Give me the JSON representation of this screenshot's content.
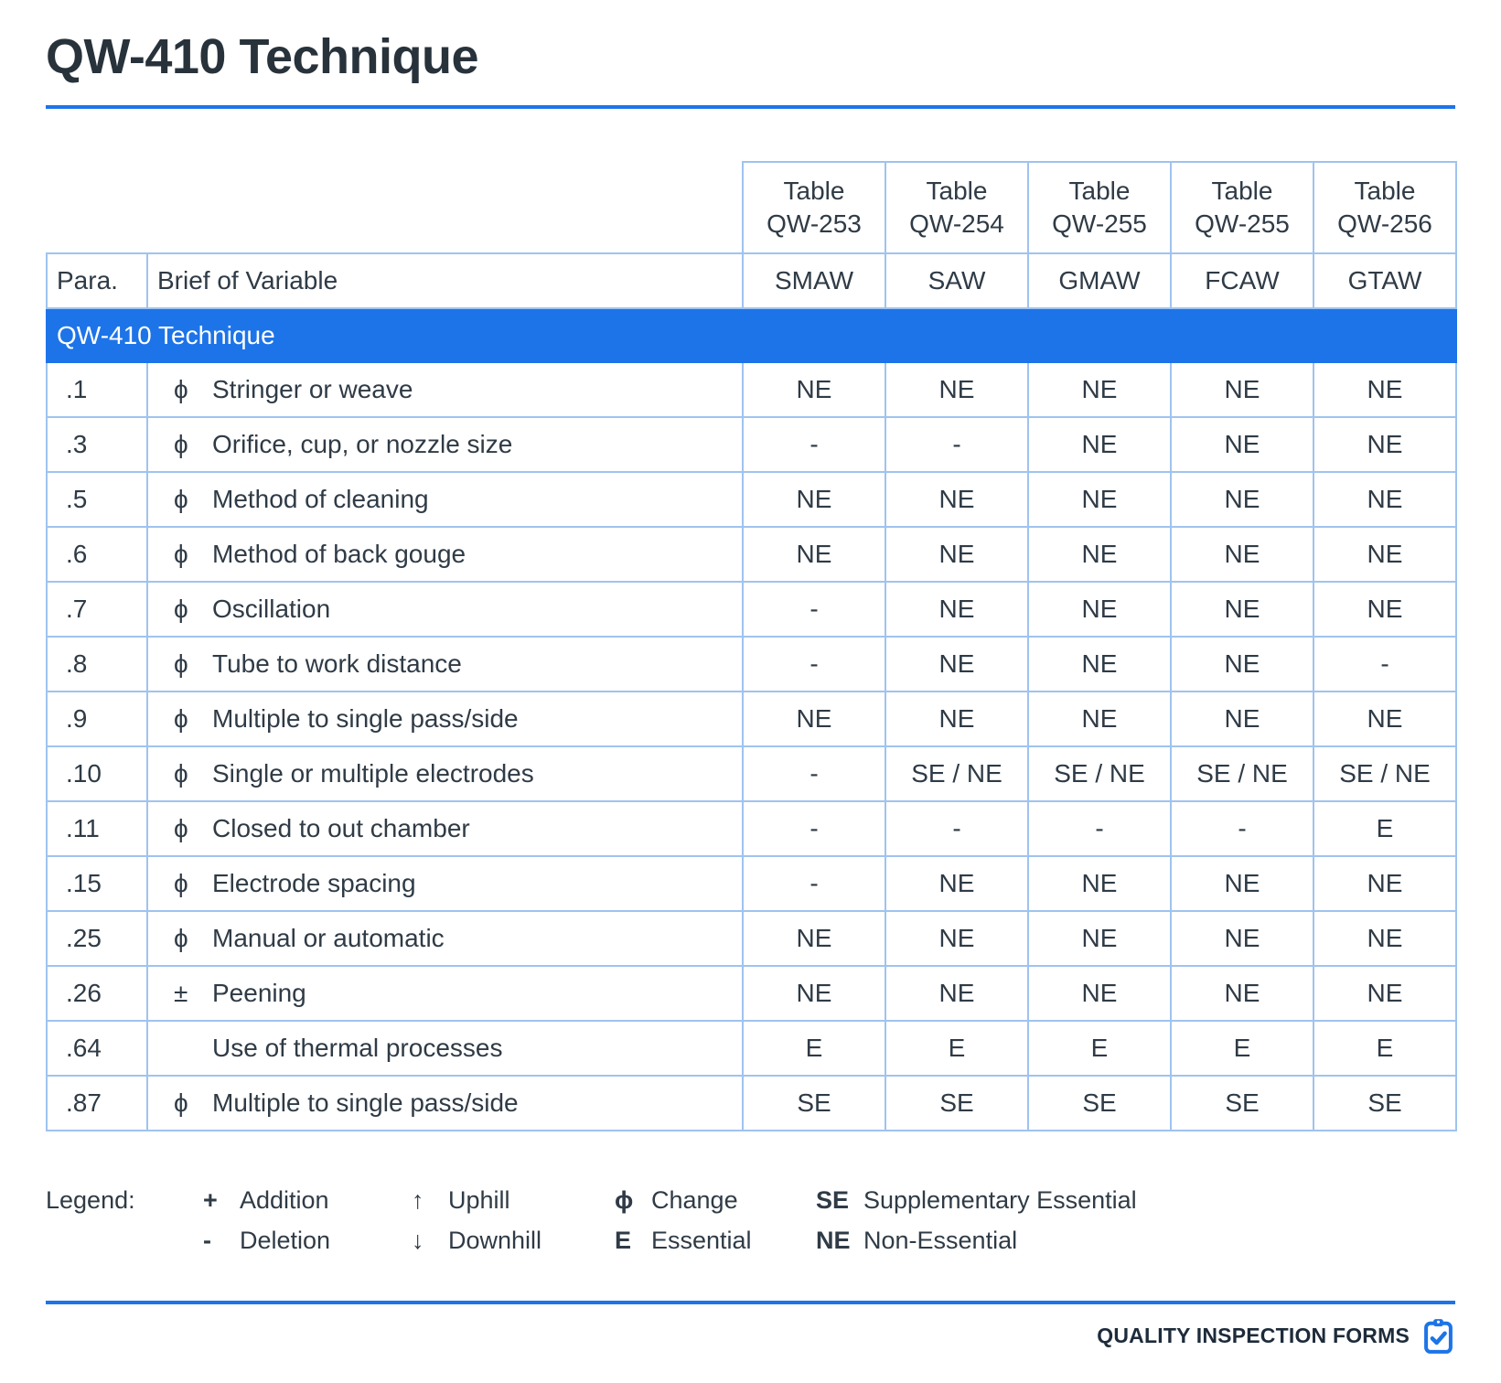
{
  "title": "QW-410 Technique",
  "table": {
    "para_header": "Para.",
    "brief_header": "Brief of Variable",
    "section_title": "QW-410 Technique",
    "columns": [
      {
        "table_label": "Table",
        "table_number": "QW-253",
        "process": "SMAW"
      },
      {
        "table_label": "Table",
        "table_number": "QW-254",
        "process": "SAW"
      },
      {
        "table_label": "Table",
        "table_number": "QW-255",
        "process": "GMAW"
      },
      {
        "table_label": "Table",
        "table_number": "QW-255",
        "process": "FCAW"
      },
      {
        "table_label": "Table",
        "table_number": "QW-256",
        "process": "GTAW"
      }
    ],
    "rows": [
      {
        "para": ".1",
        "symbol": "ϕ",
        "brief": "Stringer or weave",
        "values": [
          "NE",
          "NE",
          "NE",
          "NE",
          "NE"
        ]
      },
      {
        "para": ".3",
        "symbol": "ϕ",
        "brief": "Orifice, cup, or nozzle size",
        "values": [
          "-",
          "-",
          "NE",
          "NE",
          "NE"
        ]
      },
      {
        "para": ".5",
        "symbol": "ϕ",
        "brief": "Method of cleaning",
        "values": [
          "NE",
          "NE",
          "NE",
          "NE",
          "NE"
        ]
      },
      {
        "para": ".6",
        "symbol": "ϕ",
        "brief": "Method of back gouge",
        "values": [
          "NE",
          "NE",
          "NE",
          "NE",
          "NE"
        ]
      },
      {
        "para": ".7",
        "symbol": "ϕ",
        "brief": "Oscillation",
        "values": [
          "-",
          "NE",
          "NE",
          "NE",
          "NE"
        ]
      },
      {
        "para": ".8",
        "symbol": "ϕ",
        "brief": "Tube to work distance",
        "values": [
          "-",
          "NE",
          "NE",
          "NE",
          "-"
        ]
      },
      {
        "para": ".9",
        "symbol": "ϕ",
        "brief": "Multiple to single pass/side",
        "values": [
          "NE",
          "NE",
          "NE",
          "NE",
          "NE"
        ]
      },
      {
        "para": ".10",
        "symbol": "ϕ",
        "brief": "Single or multiple electrodes",
        "values": [
          "-",
          "SE / NE",
          "SE / NE",
          "SE / NE",
          "SE / NE"
        ]
      },
      {
        "para": ".11",
        "symbol": "ϕ",
        "brief": "Closed to out chamber",
        "values": [
          "-",
          "-",
          "-",
          "-",
          "E"
        ]
      },
      {
        "para": ".15",
        "symbol": "ϕ",
        "brief": "Electrode spacing",
        "values": [
          "-",
          "NE",
          "NE",
          "NE",
          "NE"
        ]
      },
      {
        "para": ".25",
        "symbol": "ϕ",
        "brief": "Manual or automatic",
        "values": [
          "NE",
          "NE",
          "NE",
          "NE",
          "NE"
        ]
      },
      {
        "para": ".26",
        "symbol": "±",
        "brief": "Peening",
        "values": [
          "NE",
          "NE",
          "NE",
          "NE",
          "NE"
        ]
      },
      {
        "para": ".64",
        "symbol": "",
        "brief": "Use of thermal processes",
        "values": [
          "E",
          "E",
          "E",
          "E",
          "E"
        ]
      },
      {
        "para": ".87",
        "symbol": "ϕ",
        "brief": "Multiple to single pass/side",
        "values": [
          "SE",
          "SE",
          "SE",
          "SE",
          "SE"
        ]
      }
    ]
  },
  "legend": {
    "label": "Legend:",
    "entries": [
      {
        "symbol": "+",
        "text": "Addition"
      },
      {
        "symbol": "-",
        "text": "Deletion"
      },
      {
        "symbol": "↑",
        "text": "Uphill"
      },
      {
        "symbol": "↓",
        "text": "Downhill"
      },
      {
        "symbol": "ϕ",
        "text": "Change"
      },
      {
        "symbol": "E",
        "text": "Essential"
      },
      {
        "symbol": "SE",
        "text": "Supplementary Essential"
      },
      {
        "symbol": "NE",
        "text": "Non-Essential"
      }
    ]
  },
  "footer": {
    "brand": "QUALITY INSPECTION FORMS",
    "icon": "clipboard-check-icon"
  },
  "colors": {
    "accent_blue": "#1d74e8",
    "border_blue": "#9fc3ef",
    "text_dark": "#2f3b46",
    "title_dark": "#28323b",
    "footer_dark": "#1d2b3a",
    "band_text": "#ffffff"
  }
}
